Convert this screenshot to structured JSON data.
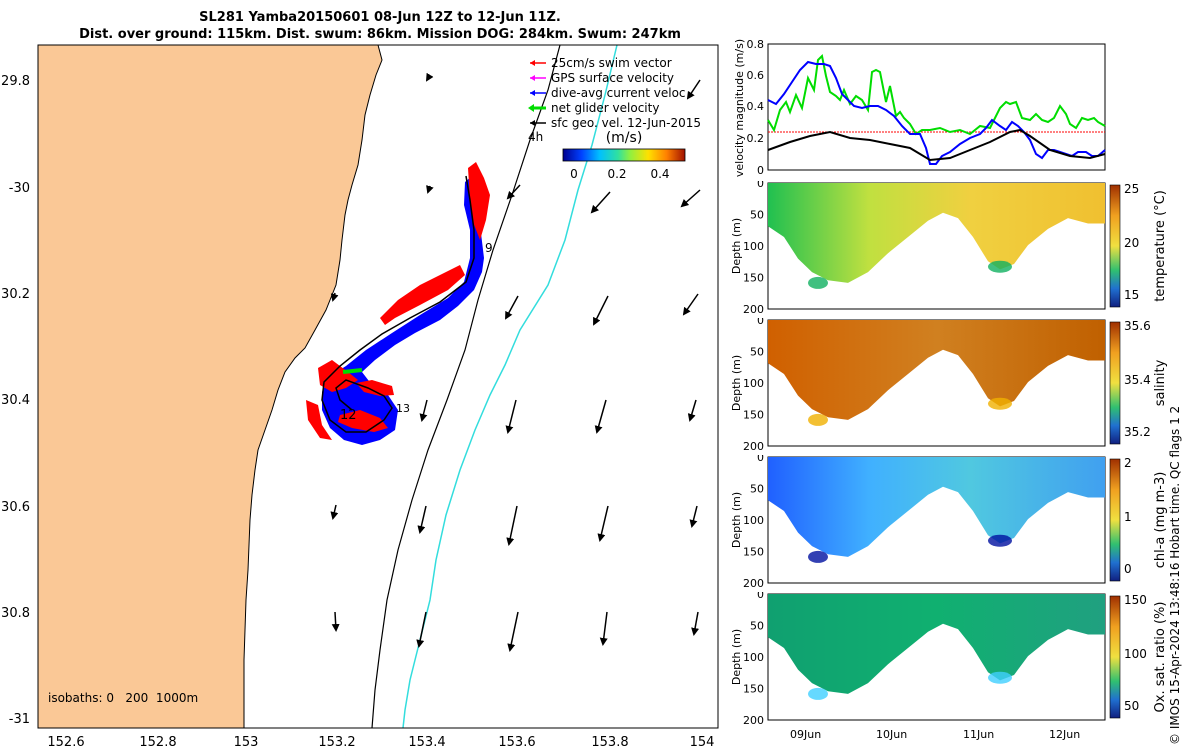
{
  "title": {
    "line1": "SL281 Yamba20150601 08-Jun 12Z to 12-Jun 11Z.",
    "line2": "Dist. over ground: 115km. Dist. swum: 86km. Mission DOG: 284km. Swum: 247km"
  },
  "map": {
    "lat_ticks": [
      "29.8",
      "-30",
      "30.2",
      "30.4",
      "30.6",
      "30.8",
      "-31"
    ],
    "lon_ticks": [
      "152.6",
      "152.8",
      "153",
      "153.2",
      "153.4",
      "153.6",
      "153.8",
      "154"
    ],
    "isobaths_label": "isobaths: 0   200  1000m",
    "time_marks": [
      "9",
      "12",
      "13",
      "4h"
    ],
    "legend": [
      {
        "label": "25cm/s swim vector",
        "color": "#ff0000"
      },
      {
        "label": "GPS surface velocity",
        "color": "#ff00ff"
      },
      {
        "label": "dive-avg current veloc",
        "color": "#0000ff"
      },
      {
        "label": "net glider velocity",
        "color": "#00dd00"
      },
      {
        "label": "sfc geo. vel. 12-Jun-2015",
        "color": "#000000"
      }
    ],
    "colorbar": {
      "title": "(m/s)",
      "ticks": [
        "0",
        "0.2",
        "0.4"
      ]
    },
    "colors": {
      "land": "#fac896",
      "track": "#0000ff",
      "swim": "#ff0000",
      "isobath_1000": "#33dddd"
    }
  },
  "velocity_panel": {
    "ylabel": "velocity magnitude (m/s)",
    "yticks": [
      "0",
      "0.2",
      "0.4",
      "0.6",
      "0.8"
    ],
    "series": [
      {
        "name": "dive-avg current veloc",
        "color": "#0000ff"
      },
      {
        "name": "net glider velocity",
        "color": "#00dd00"
      },
      {
        "name": "sfc geo. vel. 12-Jun-2015",
        "color": "#000000"
      },
      {
        "name": "25cm/s swim vector",
        "color": "#ff0000"
      }
    ]
  },
  "sections": [
    {
      "key": "temperature",
      "ylabel": "Depth (m)",
      "cblabel": "temperature (°C)",
      "cbticks": [
        "25",
        "20",
        "15"
      ],
      "yticks": [
        "0",
        "50",
        "100",
        "150",
        "200"
      ]
    },
    {
      "key": "salinity",
      "ylabel": "Depth (m)",
      "cblabel": "salinity",
      "cbticks": [
        "35.6",
        "35.4",
        "35.2"
      ],
      "yticks": [
        "0",
        "50",
        "100",
        "150",
        "200"
      ]
    },
    {
      "key": "chla",
      "ylabel": "Depth (m)",
      "cblabel": "chl-a (mg m-3)",
      "cbticks": [
        "2",
        "1",
        "0"
      ],
      "yticks": [
        "0",
        "50",
        "100",
        "150",
        "200"
      ]
    },
    {
      "key": "oxygen",
      "ylabel": "Depth (m)",
      "cblabel": "Ox. sat. ratio (%)",
      "cbticks": [
        "150",
        "100",
        "50"
      ],
      "yticks": [
        "0",
        "50",
        "100",
        "150",
        "200"
      ]
    }
  ],
  "time_axis": {
    "ticks": [
      "09Jun",
      "10Jun",
      "11Jun",
      "12Jun"
    ]
  },
  "credit": "© IMOS 15-Apr-2024 13:48:16 Hobart time. QC flags 1  2"
}
